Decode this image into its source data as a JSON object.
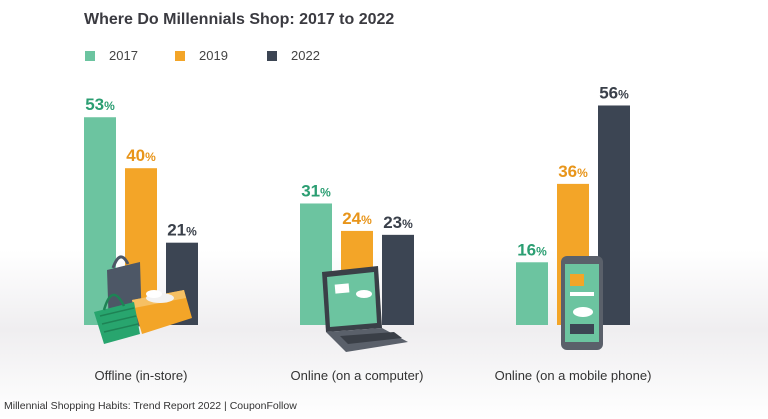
{
  "chart_data": {
    "type": "bar",
    "title": "Where Do Millennials Shop: 2017 to 2022",
    "categories": [
      "Offline (in-store)",
      "Online (on a computer)",
      "Online (on a mobile phone)"
    ],
    "series": [
      {
        "name": "2017",
        "values": [
          53,
          31,
          16
        ],
        "color": "#6cc4a0"
      },
      {
        "name": "2019",
        "values": [
          40,
          24,
          36
        ],
        "color": "#f3a528"
      },
      {
        "name": "2022",
        "values": [
          21,
          23,
          56
        ],
        "color": "#3c4553"
      }
    ],
    "value_suffix": "%",
    "label_colors": [
      "#2b9e72",
      "#e8951a",
      "#3a404a"
    ],
    "legend_position": "top-left",
    "grid": false,
    "ylim": [
      0,
      60
    ]
  },
  "source_text": "Millennial Shopping Habits: Trend Report 2022 | CouponFollow"
}
